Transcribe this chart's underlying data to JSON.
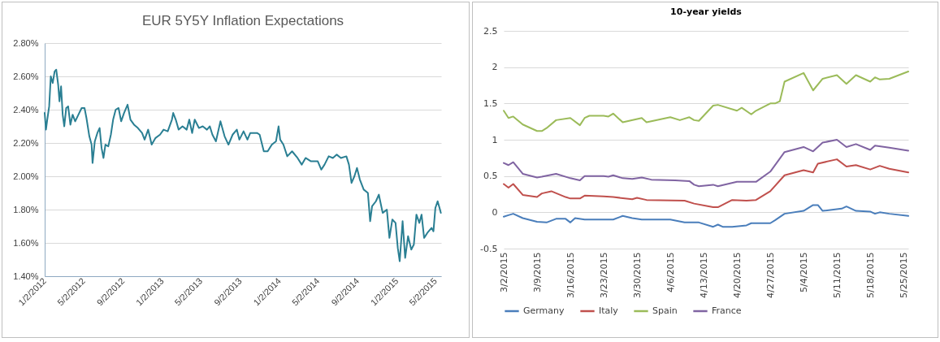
{
  "chart_data": [
    {
      "type": "line",
      "title": "EUR 5Y5Y Inflation Expectations",
      "grid": "y",
      "xlim": [
        "2012-01-02",
        "2015-05-20"
      ],
      "xticks": [
        {
          "value": "2012-01-02",
          "label": "1/2/2012"
        },
        {
          "value": "2012-05-02",
          "label": "5/2/2012"
        },
        {
          "value": "2012-09-02",
          "label": "9/2/2012"
        },
        {
          "value": "2013-01-02",
          "label": "1/2/2013"
        },
        {
          "value": "2013-05-02",
          "label": "5/2/2013"
        },
        {
          "value": "2013-09-02",
          "label": "9/2/2013"
        },
        {
          "value": "2014-01-02",
          "label": "1/2/2014"
        },
        {
          "value": "2014-05-02",
          "label": "5/2/2014"
        },
        {
          "value": "2014-09-02",
          "label": "9/2/2014"
        },
        {
          "value": "2015-01-02",
          "label": "1/2/2015"
        },
        {
          "value": "2015-05-02",
          "label": "5/2/2015"
        }
      ],
      "ylim": [
        1.4,
        2.8
      ],
      "yticks": [
        {
          "value": 1.4,
          "label": "1.40%"
        },
        {
          "value": 1.6,
          "label": "1.60%"
        },
        {
          "value": 1.8,
          "label": "1.80%"
        },
        {
          "value": 2.0,
          "label": "2.00%"
        },
        {
          "value": 2.2,
          "label": "2.20%"
        },
        {
          "value": 2.4,
          "label": "2.40%"
        },
        {
          "value": 2.6,
          "label": "2.60%"
        },
        {
          "value": 2.8,
          "label": "2.80%"
        }
      ],
      "x": [
        "2012-01-02",
        "2012-01-06",
        "2012-01-10",
        "2012-01-16",
        "2012-01-21",
        "2012-01-27",
        "2012-02-02",
        "2012-02-07",
        "2012-02-13",
        "2012-02-17",
        "2012-02-22",
        "2012-02-27",
        "2012-03-03",
        "2012-03-09",
        "2012-03-15",
        "2012-03-22",
        "2012-03-29",
        "2012-04-06",
        "2012-04-16",
        "2012-04-26",
        "2012-05-05",
        "2012-05-11",
        "2012-05-20",
        "2012-05-27",
        "2012-05-30",
        "2012-06-06",
        "2012-06-14",
        "2012-06-21",
        "2012-06-27",
        "2012-07-03",
        "2012-07-09",
        "2012-07-18",
        "2012-07-26",
        "2012-08-02",
        "2012-08-10",
        "2012-08-19",
        "2012-08-27",
        "2012-09-05",
        "2012-09-16",
        "2012-09-25",
        "2012-10-06",
        "2012-10-18",
        "2012-10-31",
        "2012-11-08",
        "2012-11-19",
        "2012-11-30",
        "2012-12-12",
        "2012-12-26",
        "2013-01-06",
        "2013-01-19",
        "2013-02-01",
        "2013-02-05",
        "2013-02-13",
        "2013-02-22",
        "2013-03-06",
        "2013-03-19",
        "2013-03-27",
        "2013-04-05",
        "2013-04-13",
        "2013-04-26",
        "2013-05-08",
        "2013-05-21",
        "2013-05-30",
        "2013-06-07",
        "2013-06-18",
        "2013-07-02",
        "2013-07-15",
        "2013-07-27",
        "2013-08-09",
        "2013-08-22",
        "2013-08-30",
        "2013-09-12",
        "2013-09-24",
        "2013-10-03",
        "2013-10-24",
        "2013-11-01",
        "2013-11-14",
        "2013-11-26",
        "2013-12-09",
        "2013-12-22",
        "2013-12-30",
        "2014-01-04",
        "2014-01-14",
        "2014-01-26",
        "2014-02-10",
        "2014-02-27",
        "2014-03-12",
        "2014-03-24",
        "2014-04-10",
        "2014-05-01",
        "2014-05-12",
        "2014-05-22",
        "2014-06-04",
        "2014-06-17",
        "2014-06-29",
        "2014-07-12",
        "2014-07-29",
        "2014-08-06",
        "2014-08-14",
        "2014-08-23",
        "2014-08-31",
        "2014-09-09",
        "2014-09-21",
        "2014-10-04",
        "2014-10-11",
        "2014-10-17",
        "2014-10-29",
        "2014-11-07",
        "2014-11-19",
        "2014-12-02",
        "2014-12-10",
        "2014-12-19",
        "2014-12-29",
        "2015-01-05",
        "2015-01-11",
        "2015-01-20",
        "2015-01-28",
        "2015-02-06",
        "2015-02-16",
        "2015-02-24",
        "2015-03-04",
        "2015-03-13",
        "2015-03-20",
        "2015-03-28",
        "2015-04-07",
        "2015-04-20",
        "2015-04-26",
        "2015-05-02",
        "2015-05-09",
        "2015-05-15",
        "2015-05-19"
      ],
      "series": [
        {
          "color": "#2a7f93",
          "values": [
            2.38,
            2.28,
            2.34,
            2.42,
            2.6,
            2.56,
            2.63,
            2.64,
            2.55,
            2.45,
            2.54,
            2.37,
            2.3,
            2.41,
            2.42,
            2.31,
            2.37,
            2.33,
            2.37,
            2.41,
            2.41,
            2.35,
            2.24,
            2.19,
            2.08,
            2.21,
            2.26,
            2.29,
            2.17,
            2.11,
            2.19,
            2.18,
            2.25,
            2.34,
            2.4,
            2.41,
            2.33,
            2.38,
            2.43,
            2.34,
            2.31,
            2.29,
            2.26,
            2.22,
            2.28,
            2.19,
            2.23,
            2.25,
            2.28,
            2.27,
            2.34,
            2.38,
            2.34,
            2.28,
            2.3,
            2.28,
            2.34,
            2.26,
            2.34,
            2.29,
            2.3,
            2.28,
            2.3,
            2.25,
            2.21,
            2.33,
            2.24,
            2.19,
            2.25,
            2.28,
            2.22,
            2.27,
            2.22,
            2.26,
            2.26,
            2.25,
            2.15,
            2.15,
            2.19,
            2.21,
            2.3,
            2.22,
            2.19,
            2.12,
            2.15,
            2.11,
            2.07,
            2.11,
            2.09,
            2.09,
            2.04,
            2.07,
            2.12,
            2.11,
            2.13,
            2.11,
            2.12,
            2.07,
            1.96,
            2.0,
            2.05,
            1.98,
            1.92,
            1.9,
            1.73,
            1.82,
            1.85,
            1.89,
            1.78,
            1.8,
            1.63,
            1.74,
            1.72,
            1.57,
            1.49,
            1.73,
            1.51,
            1.64,
            1.56,
            1.59,
            1.77,
            1.72,
            1.77,
            1.63,
            1.66,
            1.69,
            1.67,
            1.81,
            1.85,
            1.81,
            1.78
          ]
        }
      ]
    },
    {
      "type": "line",
      "title": "10-year yields",
      "grid": "y",
      "legend": "bottom",
      "xlim": [
        "2015-03-02",
        "2015-05-26"
      ],
      "xticks": [
        {
          "value": "2015-03-02",
          "label": "3/2/2015"
        },
        {
          "value": "2015-03-09",
          "label": "3/9/2015"
        },
        {
          "value": "2015-03-16",
          "label": "3/16/2015"
        },
        {
          "value": "2015-03-23",
          "label": "3/23/2015"
        },
        {
          "value": "2015-03-30",
          "label": "3/30/2015"
        },
        {
          "value": "2015-04-06",
          "label": "4/6/2015"
        },
        {
          "value": "2015-04-13",
          "label": "4/13/2015"
        },
        {
          "value": "2015-04-20",
          "label": "4/20/2015"
        },
        {
          "value": "2015-04-27",
          "label": "4/27/2015"
        },
        {
          "value": "2015-05-04",
          "label": "5/4/2015"
        },
        {
          "value": "2015-05-11",
          "label": "5/11/2015"
        },
        {
          "value": "2015-05-18",
          "label": "5/18/2015"
        },
        {
          "value": "2015-05-25",
          "label": "5/25/2015"
        }
      ],
      "ylim": [
        -0.5,
        2.5
      ],
      "yticks": [
        -0.5,
        0,
        0.5,
        1,
        1.5,
        2,
        2.5
      ],
      "series": [
        {
          "name": "Germany",
          "color": "#4a7ebb",
          "x": [
            "2015-03-02",
            "2015-03-03",
            "2015-03-04",
            "2015-03-06",
            "2015-03-09",
            "2015-03-11",
            "2015-03-13",
            "2015-03-15",
            "2015-03-16",
            "2015-03-17",
            "2015-03-19",
            "2015-03-23",
            "2015-03-25",
            "2015-03-27",
            "2015-03-29",
            "2015-03-31",
            "2015-04-06",
            "2015-04-09",
            "2015-04-12",
            "2015-04-15",
            "2015-04-16",
            "2015-04-17",
            "2015-04-19",
            "2015-04-22",
            "2015-04-23",
            "2015-04-27",
            "2015-04-28",
            "2015-04-30",
            "2015-05-04",
            "2015-05-06",
            "2015-05-07",
            "2015-05-08",
            "2015-05-12",
            "2015-05-13",
            "2015-05-15",
            "2015-05-18",
            "2015-05-19",
            "2015-05-20",
            "2015-05-22",
            "2015-05-26"
          ],
          "values": [
            -0.06,
            -0.04,
            -0.02,
            -0.08,
            -0.13,
            -0.14,
            -0.09,
            -0.09,
            -0.14,
            -0.08,
            -0.1,
            -0.1,
            -0.1,
            -0.05,
            -0.08,
            -0.1,
            -0.1,
            -0.14,
            -0.14,
            -0.2,
            -0.17,
            -0.2,
            -0.2,
            -0.18,
            -0.15,
            -0.15,
            -0.11,
            -0.02,
            0.02,
            0.1,
            0.1,
            0.02,
            0.05,
            0.08,
            0.02,
            0.01,
            -0.02,
            0.0,
            -0.02,
            -0.05
          ]
        },
        {
          "name": "Italy",
          "color": "#c0504d",
          "x": [
            "2015-03-02",
            "2015-03-03",
            "2015-03-04",
            "2015-03-06",
            "2015-03-09",
            "2015-03-10",
            "2015-03-12",
            "2015-03-15",
            "2015-03-16",
            "2015-03-18",
            "2015-03-19",
            "2015-03-23",
            "2015-03-25",
            "2015-03-29",
            "2015-03-30",
            "2015-04-01",
            "2015-04-09",
            "2015-04-11",
            "2015-04-15",
            "2015-04-16",
            "2015-04-19",
            "2015-04-22",
            "2015-04-24",
            "2015-04-27",
            "2015-04-30",
            "2015-05-04",
            "2015-05-06",
            "2015-05-07",
            "2015-05-11",
            "2015-05-13",
            "2015-05-15",
            "2015-05-18",
            "2015-05-20",
            "2015-05-22",
            "2015-05-26"
          ],
          "values": [
            0.39,
            0.34,
            0.39,
            0.24,
            0.21,
            0.26,
            0.29,
            0.21,
            0.19,
            0.19,
            0.23,
            0.22,
            0.21,
            0.18,
            0.2,
            0.17,
            0.16,
            0.12,
            0.07,
            0.07,
            0.17,
            0.16,
            0.17,
            0.29,
            0.51,
            0.58,
            0.55,
            0.67,
            0.73,
            0.63,
            0.65,
            0.59,
            0.64,
            0.6,
            0.55
          ]
        },
        {
          "name": "Spain",
          "color": "#9bbb59",
          "x": [
            "2015-03-02",
            "2015-03-03",
            "2015-03-04",
            "2015-03-06",
            "2015-03-09",
            "2015-03-10",
            "2015-03-11",
            "2015-03-13",
            "2015-03-16",
            "2015-03-18",
            "2015-03-19",
            "2015-03-20",
            "2015-03-23",
            "2015-03-24",
            "2015-03-25",
            "2015-03-27",
            "2015-03-31",
            "2015-04-01",
            "2015-04-06",
            "2015-04-08",
            "2015-04-10",
            "2015-04-11",
            "2015-04-12",
            "2015-04-15",
            "2015-04-16",
            "2015-04-20",
            "2015-04-21",
            "2015-04-23",
            "2015-04-24",
            "2015-04-27",
            "2015-04-28",
            "2015-04-29",
            "2015-04-30",
            "2015-05-04",
            "2015-05-06",
            "2015-05-08",
            "2015-05-11",
            "2015-05-13",
            "2015-05-15",
            "2015-05-18",
            "2015-05-19",
            "2015-05-20",
            "2015-05-22",
            "2015-05-26"
          ],
          "values": [
            1.4,
            1.3,
            1.32,
            1.21,
            1.12,
            1.12,
            1.16,
            1.27,
            1.3,
            1.2,
            1.3,
            1.33,
            1.33,
            1.32,
            1.36,
            1.24,
            1.3,
            1.24,
            1.31,
            1.27,
            1.31,
            1.27,
            1.26,
            1.47,
            1.48,
            1.4,
            1.44,
            1.35,
            1.4,
            1.5,
            1.5,
            1.53,
            1.8,
            1.92,
            1.68,
            1.84,
            1.89,
            1.77,
            1.89,
            1.8,
            1.86,
            1.83,
            1.84,
            1.94
          ]
        },
        {
          "name": "France",
          "color": "#8064a2",
          "x": [
            "2015-03-02",
            "2015-03-03",
            "2015-03-04",
            "2015-03-06",
            "2015-03-09",
            "2015-03-10",
            "2015-03-13",
            "2015-03-16",
            "2015-03-18",
            "2015-03-19",
            "2015-03-23",
            "2015-03-24",
            "2015-03-25",
            "2015-03-27",
            "2015-03-29",
            "2015-03-31",
            "2015-04-02",
            "2015-04-07",
            "2015-04-10",
            "2015-04-11",
            "2015-04-12",
            "2015-04-15",
            "2015-04-16",
            "2015-04-20",
            "2015-04-24",
            "2015-04-27",
            "2015-04-30",
            "2015-05-04",
            "2015-05-06",
            "2015-05-08",
            "2015-05-11",
            "2015-05-13",
            "2015-05-15",
            "2015-05-18",
            "2015-05-19",
            "2015-05-22",
            "2015-05-26"
          ],
          "values": [
            0.68,
            0.65,
            0.69,
            0.53,
            0.48,
            0.49,
            0.53,
            0.47,
            0.44,
            0.5,
            0.5,
            0.49,
            0.51,
            0.47,
            0.46,
            0.48,
            0.45,
            0.44,
            0.43,
            0.38,
            0.36,
            0.38,
            0.36,
            0.42,
            0.42,
            0.56,
            0.83,
            0.9,
            0.84,
            0.96,
            1.0,
            0.9,
            0.94,
            0.86,
            0.92,
            0.89,
            0.85
          ]
        }
      ]
    }
  ]
}
